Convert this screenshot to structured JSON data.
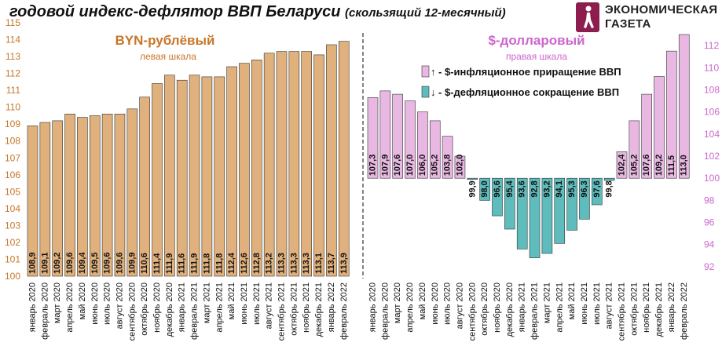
{
  "title": "годовой индекс-дефлятор ВВП Беларуси",
  "subtitle": "(скользящий 12-месячный)",
  "logo": {
    "line1": "ЭКОНОМИЧЕСКАЯ",
    "line2": "ГАЗЕТА"
  },
  "colors": {
    "byn_bar": "#e0b17d",
    "up_bar": "#e8b8e3",
    "down_bar": "#5fbcbc",
    "byn_text": "#c8762a",
    "usd_text": "#cc66cc",
    "tick_text": "#c8762a",
    "tick_text_right": "#cc66cc"
  },
  "chart_data": [
    {
      "type": "bar",
      "name": "BYN-рублёвый",
      "label_title": "BYN-рублёвый",
      "label_sub": "левая шкала",
      "axis": "left",
      "ylim": [
        100,
        115
      ],
      "yticks": [
        "100",
        "101",
        "102",
        "103",
        "104",
        "105",
        "106",
        "107",
        "108",
        "109",
        "110",
        "111",
        "112",
        "113",
        "114",
        "115"
      ],
      "categories": [
        "январь 2020",
        "февраль 2020",
        "март 2020",
        "апрель 2020",
        "май 2020",
        "июнь 2020",
        "июль 2020",
        "август 2020",
        "сентябрь 2020",
        "октябрь 2020",
        "ноябрь 2020",
        "декабрь 2020",
        "январь 2021",
        "февраль 2021",
        "март 2021",
        "апрель 2021",
        "май 2021",
        "июнь 2021",
        "июль 2021",
        "август 2021",
        "сентябрь 2021",
        "октябрь 2021",
        "ноябрь 2021",
        "декабрь 2021",
        "январь 2022",
        "февраль 2022"
      ],
      "values": [
        108.9,
        109.1,
        109.2,
        109.6,
        109.4,
        109.5,
        109.6,
        109.6,
        109.9,
        110.6,
        111.4,
        111.9,
        111.6,
        111.9,
        111.8,
        111.8,
        112.4,
        112.6,
        112.8,
        113.2,
        113.3,
        113.3,
        113.3,
        113.1,
        113.7,
        113.9
      ],
      "labels": [
        "108,9",
        "109,1",
        "109,2",
        "109,6",
        "109,4",
        "109,5",
        "109,6",
        "109,6",
        "109,9",
        "110,6",
        "111,4",
        "111,9",
        "111,6",
        "111,9",
        "111,8",
        "111,8",
        "112,4",
        "112,6",
        "112,8",
        "113,2",
        "113,3",
        "113,3",
        "113,3",
        "113,1",
        "113,7",
        "113,9"
      ]
    },
    {
      "type": "bar",
      "name": "$-долларовый",
      "label_title": "$-долларовый",
      "label_sub": "правая шкала",
      "axis": "right",
      "baseline": 100,
      "ylim": [
        91,
        113
      ],
      "yticks": [
        "92",
        "94",
        "96",
        "98",
        "100",
        "102",
        "104",
        "106",
        "108",
        "110",
        "112"
      ],
      "legend": [
        {
          "symbol": "↑",
          "text": "- $-инфляционное приращение ВВП",
          "color": "#e8b8e3"
        },
        {
          "symbol": "↓",
          "text": "- $-дефляционное сокращение ВВП",
          "color": "#5fbcbc"
        }
      ],
      "categories": [
        "январь 2020",
        "февраль 2020",
        "март 2020",
        "апрель 2020",
        "май 2020",
        "июнь 2020",
        "июль 2020",
        "август 2020",
        "сентябрь 2020",
        "октябрь 2020",
        "ноябрь 2020",
        "декабрь 2020",
        "январь 2021",
        "февраль 2021",
        "март 2021",
        "апрель 2021",
        "май 2021",
        "июнь 2021",
        "июль 2021",
        "август 2021",
        "сентябрь 2021",
        "октябрь 2021",
        "ноябрь 2021",
        "декабрь 2021",
        "январь 2022",
        "февраль 2022"
      ],
      "values": [
        107.3,
        107.9,
        107.6,
        107.0,
        106.0,
        105.2,
        103.8,
        102.0,
        99.9,
        98.0,
        96.6,
        95.4,
        93.6,
        92.8,
        93.2,
        94.1,
        95.3,
        96.3,
        97.6,
        99.8,
        102.4,
        105.2,
        107.6,
        109.2,
        111.5,
        113.0
      ],
      "labels": [
        "107,3",
        "107,9",
        "107,6",
        "107,0",
        "106,0",
        "105,2",
        "103,8",
        "102,0",
        "99,9",
        "98,0",
        "96,6",
        "95,4",
        "93,6",
        "92,8",
        "93,2",
        "94,1",
        "95,3",
        "96,3",
        "97,6",
        "99,8",
        "102,4",
        "105,2",
        "107,6",
        "109,2",
        "111,5",
        "113,0"
      ]
    }
  ]
}
